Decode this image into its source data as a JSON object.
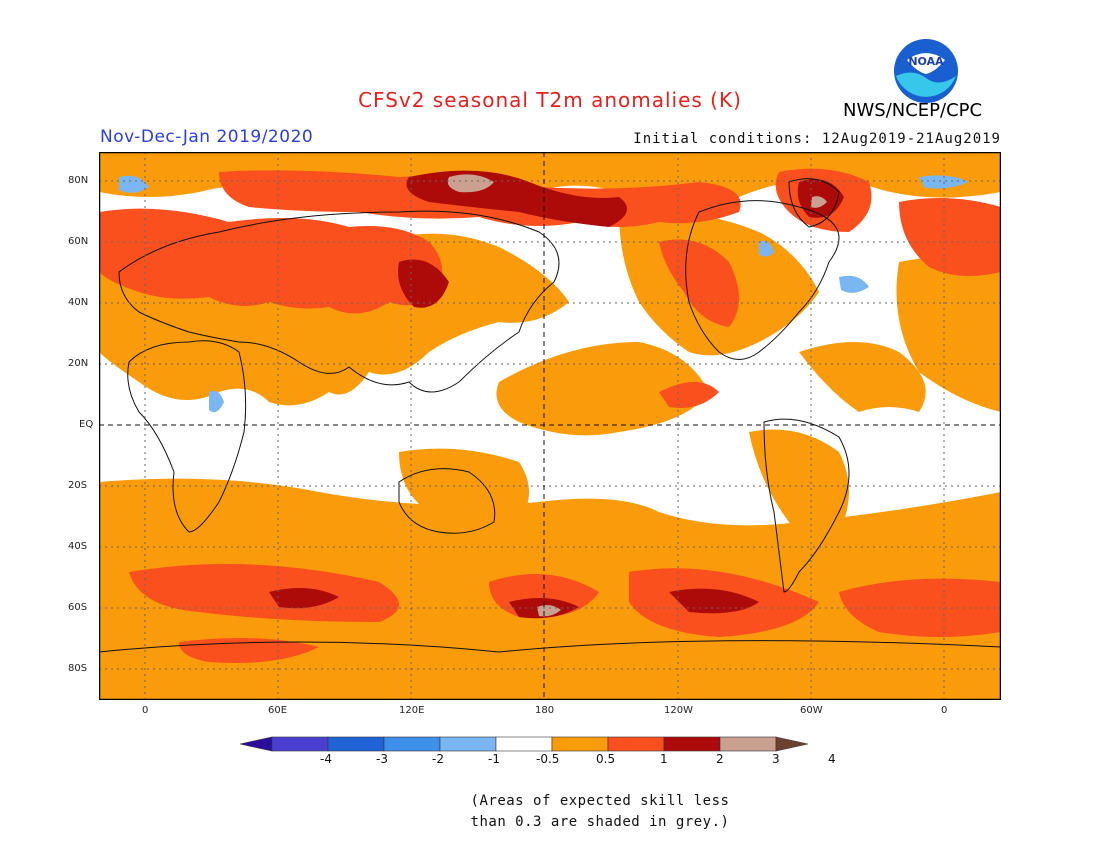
{
  "header": {
    "title": "CFSv2 seasonal T2m anomalies (K)",
    "period": "Nov-Dec-Jan 2019/2020",
    "initial_conditions": "Initial conditions: 12Aug2019-21Aug2019",
    "agency": "NWS/NCEP/CPC",
    "logo_text": "NOAA"
  },
  "map": {
    "lat_labels": [
      "80N",
      "60N",
      "40N",
      "20N",
      "EQ",
      "20S",
      "40S",
      "60S",
      "80S"
    ],
    "lon_labels": [
      "0",
      "60E",
      "120E",
      "180",
      "120W",
      "60W",
      "0"
    ]
  },
  "colorbar": {
    "labels": [
      "-4",
      "-3",
      "-2",
      "-1",
      "-0.5",
      "0.5",
      "1",
      "2",
      "3",
      "4"
    ],
    "colors": [
      "#2b0f9c",
      "#4a3fd1",
      "#1f63d6",
      "#3d8fea",
      "#79b6f2",
      "#ffffff",
      "#f99b0a",
      "#f9501e",
      "#ad0a0a",
      "#caa191",
      "#6b4230"
    ]
  },
  "note": {
    "line1": "(Areas of expected skill less",
    "line2": "than 0.3 are shaded in grey.)"
  },
  "colors": {
    "title": "#e8201c",
    "period": "#2a3ee0",
    "anom_05_1": "#f99b0a",
    "anom_1_2": "#f9501e",
    "anom_2_3": "#ad0a0a",
    "anom_3_4": "#caa191",
    "anom_neg": "#79b6f2"
  }
}
